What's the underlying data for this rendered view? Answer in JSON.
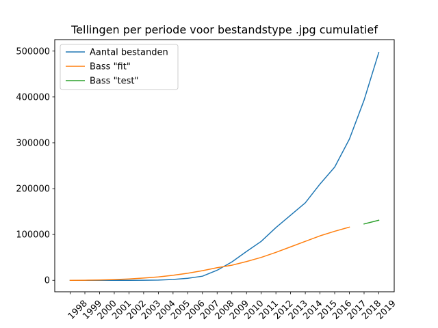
{
  "chart_data": {
    "type": "line",
    "title": "Tellingen per periode voor bestandstype .jpg cumulatief",
    "xlabel": "",
    "ylabel": "",
    "categories": [
      "1998",
      "1999",
      "2000",
      "2001",
      "2002",
      "2003",
      "2004",
      "2005",
      "2006",
      "2007",
      "2008",
      "2009",
      "2010",
      "2011",
      "2012",
      "2013",
      "2014",
      "2015",
      "2016",
      "2017",
      "2018",
      "2019"
    ],
    "ylim": [
      -25000,
      525000
    ],
    "yticks": [
      0,
      100000,
      200000,
      300000,
      400000,
      500000
    ],
    "yticklabels": [
      "0",
      "100000",
      "200000",
      "300000",
      "400000",
      "500000"
    ],
    "grid": false,
    "legend": "top-left",
    "series": [
      {
        "name": "Aantal bestanden",
        "color": "#1f77b4",
        "values": [
          0,
          0,
          0,
          0,
          0,
          100,
          500,
          1800,
          4500,
          9000,
          22000,
          40000,
          63000,
          85000,
          115000,
          142000,
          169000,
          210000,
          247000,
          308000,
          393000,
          497000
        ]
      },
      {
        "name": "Bass \"fit\"",
        "color": "#ff7f0e",
        "values": [
          0,
          200,
          700,
          1600,
          3000,
          5000,
          7500,
          11000,
          15500,
          21000,
          27500,
          33000,
          41000,
          50000,
          61000,
          73000,
          85000,
          97000,
          107000,
          116000,
          null,
          null
        ]
      },
      {
        "name": "Bass \"test\"",
        "color": "#2ca02c",
        "values": [
          null,
          null,
          null,
          null,
          null,
          null,
          null,
          null,
          null,
          null,
          null,
          null,
          null,
          null,
          null,
          null,
          null,
          null,
          null,
          null,
          123000,
          131000
        ]
      }
    ]
  }
}
